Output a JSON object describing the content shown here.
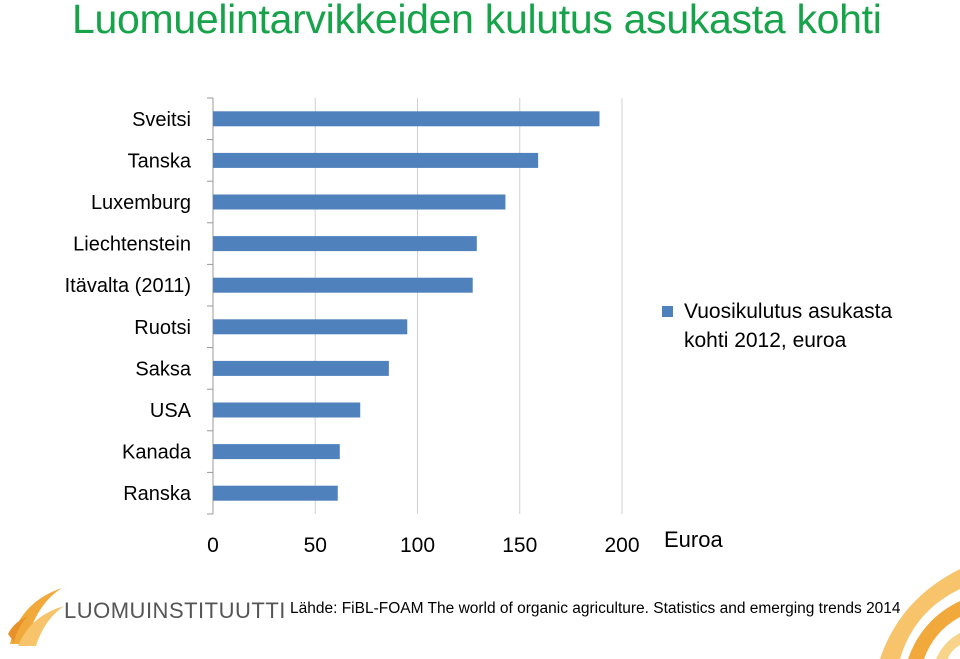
{
  "title": "Luomuelintarvikkeiden kulutus asukasta kohti",
  "source": "Lähde: FiBL-FOAM The world of organic agriculture. Statistics and emerging trends 2014",
  "logo_text": "LUOMUINSTITUUTTI",
  "colors": {
    "title": "#16a34a",
    "bar": "#4f81bd",
    "grid": "#d0d0d0",
    "logo_accent": "#f2a93b"
  },
  "chart_data": {
    "type": "bar",
    "orientation": "horizontal",
    "categories": [
      "Sveitsi",
      "Tanska",
      "Luxemburg",
      "Liechtenstein",
      "Itävalta (2011)",
      "Ruotsi",
      "Saksa",
      "USA",
      "Kanada",
      "Ranska"
    ],
    "series": [
      {
        "name": "Vuosikulutus asukasta kohti 2012, euroa",
        "values": [
          189,
          159,
          143,
          129,
          127,
          95,
          86,
          72,
          62,
          61
        ]
      }
    ],
    "xlim": [
      0,
      200
    ],
    "xticks": [
      0,
      50,
      100,
      150,
      200
    ],
    "xlabel": "Euroa",
    "grid": true,
    "legend_position": "right"
  }
}
